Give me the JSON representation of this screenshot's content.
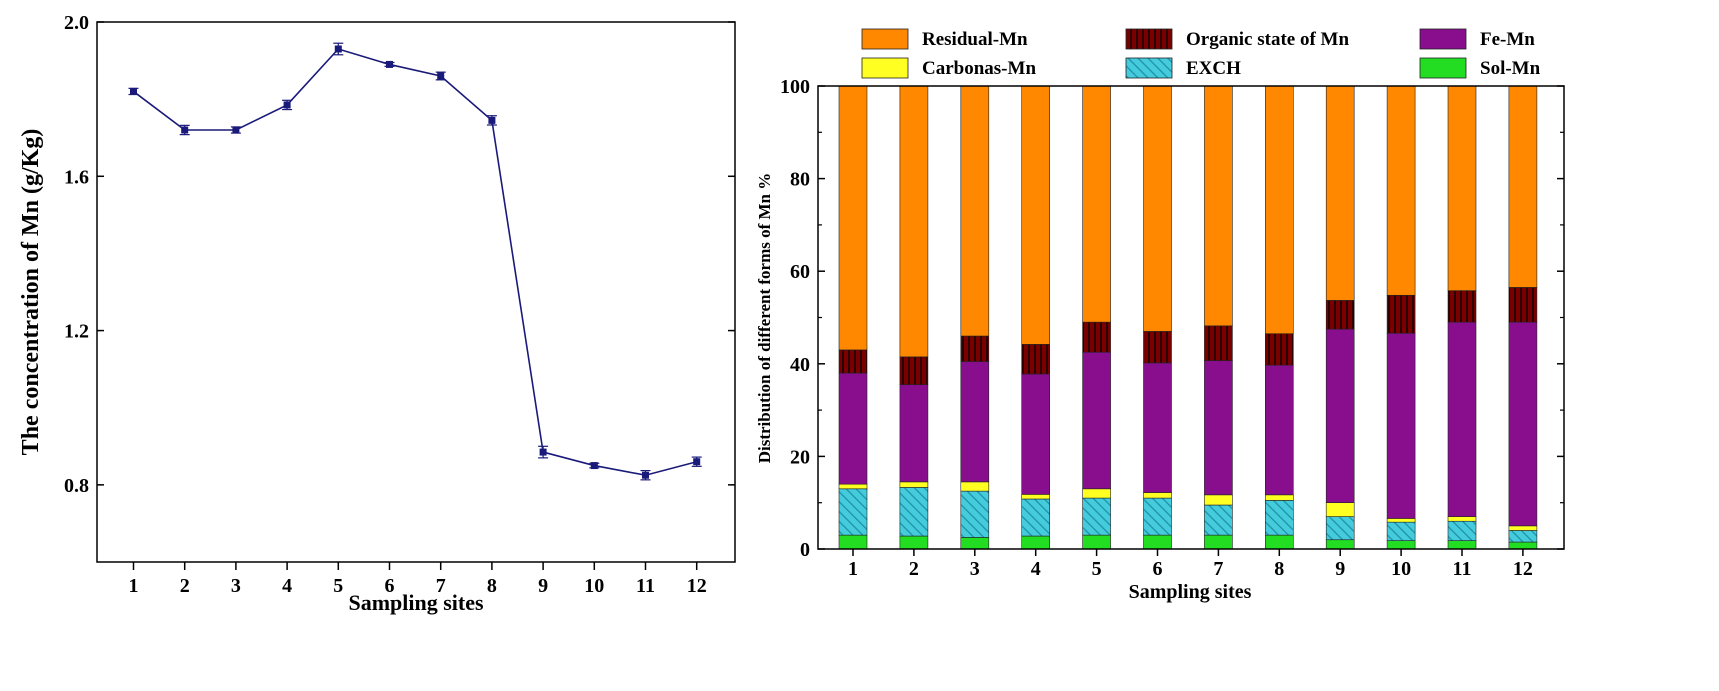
{
  "chart_data": [
    {
      "type": "line",
      "title": "",
      "xlabel": "Sampling sites",
      "ylabel": "The concentration of Mn (g/Kg)",
      "categories": [
        "1",
        "2",
        "3",
        "4",
        "5",
        "6",
        "7",
        "8",
        "9",
        "10",
        "11",
        "12"
      ],
      "ylim": [
        0.6,
        2.0
      ],
      "yticks": [
        0.8,
        1.2,
        1.6,
        2.0
      ],
      "ytick_labels": [
        "0.8",
        "1.2",
        "1.6",
        "2.0"
      ],
      "grid": false,
      "series": [
        {
          "values": [
            1.82,
            1.72,
            1.72,
            1.785,
            1.93,
            1.89,
            1.86,
            1.745,
            0.885,
            0.85,
            0.825,
            0.86
          ],
          "errors": [
            0.008,
            0.012,
            0.008,
            0.012,
            0.015,
            0.005,
            0.01,
            0.012,
            0.015,
            0.006,
            0.012,
            0.012
          ],
          "color": "#1a1a7a"
        }
      ]
    },
    {
      "type": "bar",
      "stacked": true,
      "title": "",
      "xlabel": "Sampling sites",
      "ylabel": "Distribution of different forms of Mn %",
      "categories": [
        "1",
        "2",
        "3",
        "4",
        "5",
        "6",
        "7",
        "8",
        "9",
        "10",
        "11",
        "12"
      ],
      "ylim": [
        0,
        100
      ],
      "yticks": [
        0,
        20,
        40,
        60,
        80,
        100
      ],
      "ytick_labels": [
        "0",
        "20",
        "40",
        "60",
        "80",
        "100"
      ],
      "grid": false,
      "legend_position": "top",
      "legend_order": [
        "Residual-Mn",
        "Organic state of Mn",
        "Fe-Mn",
        "Carbonas-Mn",
        "EXCH",
        "Sol-Mn"
      ],
      "series": [
        {
          "name": "Sol-Mn",
          "color": "#22dd22",
          "pattern": "solid",
          "values": [
            3,
            2.8,
            2.5,
            2.8,
            3,
            3,
            3,
            3,
            2,
            1.8,
            1.8,
            1.5
          ]
        },
        {
          "name": "EXCH",
          "color": "#44ccdd",
          "pattern": "hatch",
          "values": [
            10,
            10.5,
            10,
            8,
            8,
            8,
            6.5,
            7.5,
            5,
            4,
            4.2,
            2.5
          ]
        },
        {
          "name": "Carbonas-Mn",
          "color": "#ffff22",
          "pattern": "solid",
          "values": [
            1,
            1.2,
            2,
            1,
            2,
            1.2,
            2.2,
            1.2,
            3,
            0.8,
            1,
            1
          ]
        },
        {
          "name": "Fe-Mn",
          "color": "#880e8e",
          "pattern": "solid",
          "values": [
            24,
            21,
            26,
            26,
            29.5,
            28,
            29,
            28,
            37.5,
            40,
            42,
            44
          ]
        },
        {
          "name": "Organic state of Mn",
          "color": "#660000",
          "pattern": "vlines",
          "values": [
            5,
            6,
            5.5,
            6.4,
            6.5,
            6.8,
            7.5,
            6.8,
            6.2,
            8.2,
            6.8,
            7.5
          ]
        },
        {
          "name": "Residual-Mn",
          "color": "#ff8800",
          "pattern": "solid",
          "values": [
            57,
            58.5,
            54,
            55.8,
            51,
            53,
            51.8,
            53.5,
            46.3,
            45.2,
            44.2,
            43.5
          ]
        }
      ]
    }
  ]
}
